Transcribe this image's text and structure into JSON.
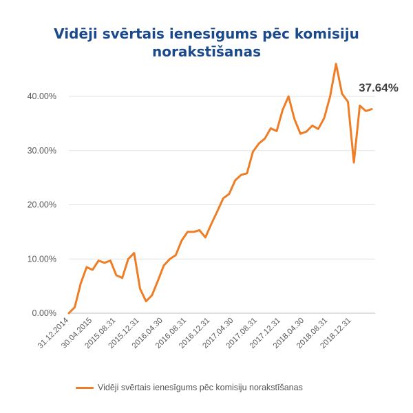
{
  "chart_data": {
    "type": "line",
    "title": "Vidēji svērtais ienesīgums pēc komisiju norakstīšanas",
    "xlabel": "",
    "ylabel": "",
    "ylim": [
      0,
      0.45
    ],
    "yticks": [
      0,
      0.1,
      0.2,
      0.3,
      0.4
    ],
    "ytick_labels": [
      "0.00%",
      "10.00%",
      "20.00%",
      "30.00%",
      "40.00%"
    ],
    "xtick_labels": [
      "31.12.2014",
      "30.04.2015",
      "2015.08.31",
      "2015.12.31",
      "2016.04.30",
      "2016.08.31",
      "2016.12.31",
      "2017.04.30",
      "2017.08.31",
      "2017.12.31",
      "2018.04.30",
      "2018.08.31",
      "2018.12.31"
    ],
    "grid": true,
    "legend": "bottom",
    "annotation": "37.64%",
    "series": [
      {
        "name": "Vidēji svērtais ienesīgums pēc komisiju norakstīšanas",
        "color": "#ee7d25",
        "values": [
          0.0,
          0.011,
          0.055,
          0.085,
          0.08,
          0.097,
          0.093,
          0.097,
          0.07,
          0.065,
          0.1,
          0.111,
          0.045,
          0.022,
          0.033,
          0.06,
          0.088,
          0.1,
          0.107,
          0.134,
          0.15,
          0.15,
          0.153,
          0.14,
          0.165,
          0.188,
          0.212,
          0.22,
          0.245,
          0.255,
          0.258,
          0.298,
          0.313,
          0.322,
          0.341,
          0.336,
          0.375,
          0.4,
          0.358,
          0.331,
          0.335,
          0.346,
          0.34,
          0.36,
          0.4,
          0.46,
          0.405,
          0.39,
          0.278,
          0.383,
          0.373,
          0.3764
        ]
      }
    ]
  }
}
